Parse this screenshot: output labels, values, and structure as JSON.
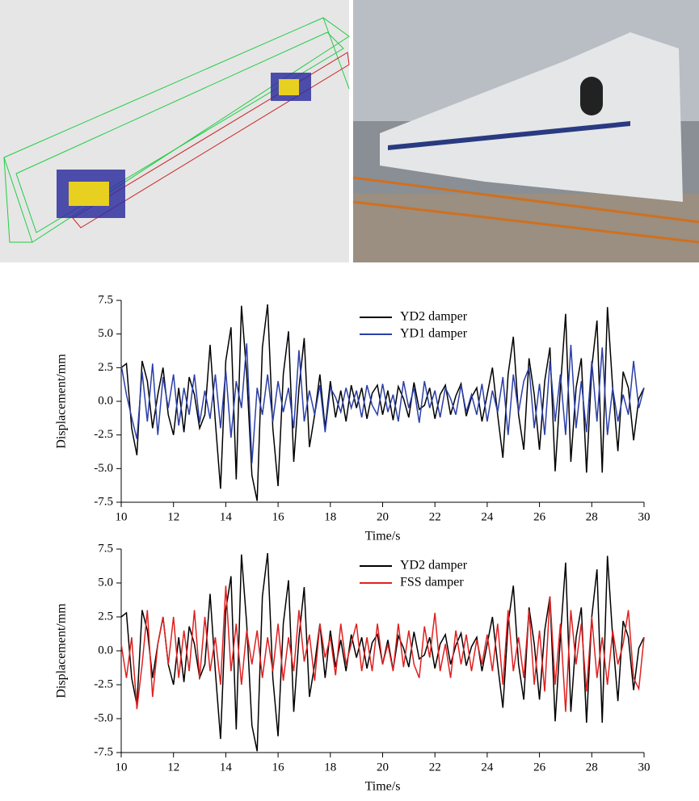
{
  "chart_data": [
    {
      "type": "line",
      "xlabel": "Time/s",
      "ylabel": "Displacement/mm",
      "legend": "upper center",
      "xlim": [
        10,
        30
      ],
      "ylim": [
        -7.5,
        7.5
      ],
      "xticks": [
        10,
        12,
        14,
        16,
        18,
        20,
        22,
        24,
        26,
        28,
        30
      ],
      "yticks": [
        7.5,
        {
          "value": 5,
          "label": "5.0"
        },
        2.5,
        {
          "value": 0,
          "label": "0.0"
        },
        -2.5,
        {
          "value": -5,
          "label": "-5.0"
        },
        -7.5
      ],
      "x": [
        10,
        10.2,
        10.4,
        10.6,
        10.8,
        11,
        11.2,
        11.4,
        11.6,
        11.8,
        12,
        12.2,
        12.4,
        12.6,
        12.8,
        13,
        13.2,
        13.4,
        13.6,
        13.8,
        14,
        14.2,
        14.4,
        14.6,
        14.8,
        15,
        15.2,
        15.4,
        15.6,
        15.8,
        16,
        16.2,
        16.4,
        16.6,
        16.8,
        17,
        17.2,
        17.4,
        17.6,
        17.8,
        18,
        18.2,
        18.4,
        18.6,
        18.8,
        19,
        19.2,
        19.4,
        19.6,
        19.8,
        20,
        20.2,
        20.4,
        20.6,
        20.8,
        21,
        21.2,
        21.4,
        21.6,
        21.8,
        22,
        22.2,
        22.4,
        22.6,
        22.8,
        23,
        23.2,
        23.4,
        23.6,
        23.8,
        24,
        24.2,
        24.4,
        24.6,
        24.8,
        25,
        25.2,
        25.4,
        25.6,
        25.8,
        26,
        26.2,
        26.4,
        26.6,
        26.8,
        27,
        27.2,
        27.4,
        27.6,
        27.8,
        28,
        28.2,
        28.4,
        28.6,
        28.8,
        29,
        29.2,
        29.4,
        29.6,
        29.8,
        30
      ],
      "series": [
        {
          "name": "YD2 damper",
          "color": "#000000",
          "values": [
            2.5,
            2.8,
            -2.0,
            -4.0,
            3.0,
            1.5,
            -2.0,
            0.5,
            2.5,
            -1.0,
            -2.5,
            1.0,
            -2.3,
            1.8,
            0.5,
            -2.0,
            -1.0,
            4.2,
            -1.5,
            -6.5,
            3.0,
            5.5,
            -5.8,
            7.1,
            2.0,
            -5.5,
            -7.4,
            4.0,
            7.2,
            -2.0,
            -6.3,
            2.0,
            5.2,
            -4.5,
            1.0,
            4.7,
            -3.4,
            -1.0,
            2.0,
            -2.0,
            1.5,
            -1.2,
            0.8,
            -1.5,
            1.2,
            -0.5,
            1.0,
            -1.3,
            0.6,
            1.2,
            -1.0,
            0.8,
            -1.4,
            1.1,
            0.2,
            -1.2,
            1.4,
            -0.6,
            -0.3,
            1.0,
            -1.3,
            0.5,
            1.2,
            -1.0,
            0.4,
            1.3,
            -1.1,
            0.3,
            1.0,
            -1.5,
            0.5,
            2.5,
            -1.0,
            -4.2,
            2.0,
            4.8,
            -1.0,
            -3.6,
            3.2,
            0.5,
            -3.6,
            1.5,
            4.0,
            -5.2,
            1.0,
            6.5,
            -4.5,
            1.0,
            3.2,
            -5.3,
            2.5,
            6.0,
            -5.3,
            7.0,
            1.0,
            -3.7,
            2.2,
            1.0,
            -2.9,
            0.2,
            1.0
          ]
        },
        {
          "name": "YD1 damper",
          "color": "#2b3fa8",
          "values": [
            2.7,
            0.5,
            -1.2,
            -2.8,
            2.2,
            -1.5,
            2.8,
            -2.5,
            1.8,
            -0.5,
            2.0,
            -1.8,
            1.0,
            -1.0,
            2.0,
            -1.6,
            0.8,
            -1.3,
            2.0,
            -2.0,
            2.3,
            -2.7,
            1.5,
            -0.5,
            4.3,
            -4.6,
            1.0,
            -1.0,
            2.0,
            -1.5,
            1.5,
            -0.8,
            1.0,
            -2.0,
            3.8,
            -1.5,
            0.8,
            -1.0,
            1.2,
            -2.3,
            1.0,
            0.3,
            -0.8,
            1.0,
            -0.5,
            0.8,
            -1.2,
            1.2,
            -0.3,
            -1.0,
            1.3,
            -0.8,
            0.5,
            -1.5,
            1.5,
            -0.5,
            1.0,
            -1.6,
            1.5,
            -0.5,
            0.8,
            -1.2,
            1.0,
            0.2,
            -1.0,
            1.2,
            -0.8,
            0.5,
            -1.0,
            1.3,
            -1.5,
            0.8,
            -0.8,
            1.8,
            -2.5,
            2.0,
            -0.8,
            1.5,
            2.5,
            -2.0,
            1.3,
            -2.5,
            3.0,
            -1.5,
            2.0,
            -2.5,
            4.2,
            -2.0,
            1.5,
            -2.3,
            3.0,
            -1.5,
            4.0,
            -2.5,
            1.0,
            -1.5,
            0.5,
            -1.0,
            3.0,
            -0.5,
            1.0
          ]
        }
      ]
    },
    {
      "type": "line",
      "xlabel": "Time/s",
      "ylabel": "Displacement/mm",
      "legend": "upper center",
      "xlim": [
        10,
        30
      ],
      "ylim": [
        -7.5,
        7.5
      ],
      "xticks": [
        10,
        12,
        14,
        16,
        18,
        20,
        22,
        24,
        26,
        28,
        30
      ],
      "yticks": [
        7.5,
        {
          "value": 5,
          "label": "5.0"
        },
        2.5,
        {
          "value": 0,
          "label": "0.0"
        },
        -2.5,
        {
          "value": -5,
          "label": "-5.0"
        },
        -7.5
      ],
      "x": [
        10,
        10.2,
        10.4,
        10.6,
        10.8,
        11,
        11.2,
        11.4,
        11.6,
        11.8,
        12,
        12.2,
        12.4,
        12.6,
        12.8,
        13,
        13.2,
        13.4,
        13.6,
        13.8,
        14,
        14.2,
        14.4,
        14.6,
        14.8,
        15,
        15.2,
        15.4,
        15.6,
        15.8,
        16,
        16.2,
        16.4,
        16.6,
        16.8,
        17,
        17.2,
        17.4,
        17.6,
        17.8,
        18,
        18.2,
        18.4,
        18.6,
        18.8,
        19,
        19.2,
        19.4,
        19.6,
        19.8,
        20,
        20.2,
        20.4,
        20.6,
        20.8,
        21,
        21.2,
        21.4,
        21.6,
        21.8,
        22,
        22.2,
        22.4,
        22.6,
        22.8,
        23,
        23.2,
        23.4,
        23.6,
        23.8,
        24,
        24.2,
        24.4,
        24.6,
        24.8,
        25,
        25.2,
        25.4,
        25.6,
        25.8,
        26,
        26.2,
        26.4,
        26.6,
        26.8,
        27,
        27.2,
        27.4,
        27.6,
        27.8,
        28,
        28.2,
        28.4,
        28.6,
        28.8,
        29,
        29.2,
        29.4,
        29.6,
        29.8,
        30
      ],
      "series": [
        {
          "name": "YD2 damper",
          "color": "#000000",
          "values": [
            2.5,
            2.8,
            -2.0,
            -4.0,
            3.0,
            1.5,
            -2.0,
            0.5,
            2.5,
            -1.0,
            -2.5,
            1.0,
            -2.3,
            1.8,
            0.5,
            -2.0,
            -1.0,
            4.2,
            -1.5,
            -6.5,
            3.0,
            5.5,
            -5.8,
            7.1,
            2.0,
            -5.5,
            -7.4,
            4.0,
            7.2,
            -2.0,
            -6.3,
            2.0,
            5.2,
            -4.5,
            1.0,
            4.7,
            -3.4,
            -1.0,
            2.0,
            -2.0,
            1.5,
            -1.2,
            0.8,
            -1.5,
            1.2,
            -0.5,
            1.0,
            -1.3,
            0.6,
            1.2,
            -1.0,
            0.8,
            -1.4,
            1.1,
            0.2,
            -1.2,
            1.4,
            -0.6,
            -0.3,
            1.0,
            -1.3,
            0.5,
            1.2,
            -1.0,
            0.4,
            1.3,
            -1.1,
            0.3,
            1.0,
            -1.5,
            0.5,
            2.5,
            -1.0,
            -4.2,
            2.0,
            4.8,
            -1.0,
            -3.6,
            3.2,
            0.5,
            -3.6,
            1.5,
            4.0,
            -5.2,
            1.0,
            6.5,
            -4.5,
            1.0,
            3.2,
            -5.3,
            2.5,
            6.0,
            -5.3,
            7.0,
            1.0,
            -3.7,
            2.2,
            1.0,
            -2.9,
            0.2,
            1.0
          ]
        },
        {
          "name": "FSS damper",
          "color": "#e02020",
          "values": [
            0.5,
            -2.0,
            1.0,
            -4.3,
            -1.0,
            3.0,
            -3.4,
            0.5,
            2.5,
            -1.0,
            2.5,
            -2.0,
            1.5,
            -1.5,
            3.0,
            -2.0,
            2.5,
            -1.5,
            1.0,
            -2.5,
            4.8,
            -1.5,
            2.0,
            -2.5,
            1.5,
            -1.0,
            1.5,
            -2.0,
            1.0,
            -1.5,
            2.0,
            -2.2,
            1.0,
            -1.5,
            3.0,
            -0.8,
            1.2,
            -2.2,
            2.0,
            -0.5,
            1.0,
            -1.8,
            2.0,
            -1.0,
            0.5,
            2.0,
            -1.5,
            1.0,
            -1.5,
            2.0,
            -1.0,
            0.5,
            -1.5,
            2.0,
            -1.2,
            1.5,
            -1.0,
            -2.0,
            1.8,
            -0.5,
            2.8,
            -1.5,
            0.5,
            -2.0,
            1.5,
            -1.0,
            1.2,
            -1.5,
            0.8,
            -1.0,
            1.2,
            -1.5,
            2.0,
            -2.5,
            3.0,
            -1.5,
            1.0,
            -2.0,
            3.0,
            -2.5,
            1.5,
            -3.0,
            4.0,
            -2.5,
            2.0,
            -4.5,
            3.0,
            -1.0,
            2.0,
            -3.0,
            2.5,
            -2.0,
            1.0,
            -2.5,
            1.5,
            -1.0,
            0.5,
            3.0,
            -2.0,
            -2.8,
            1.0
          ]
        }
      ]
    }
  ]
}
